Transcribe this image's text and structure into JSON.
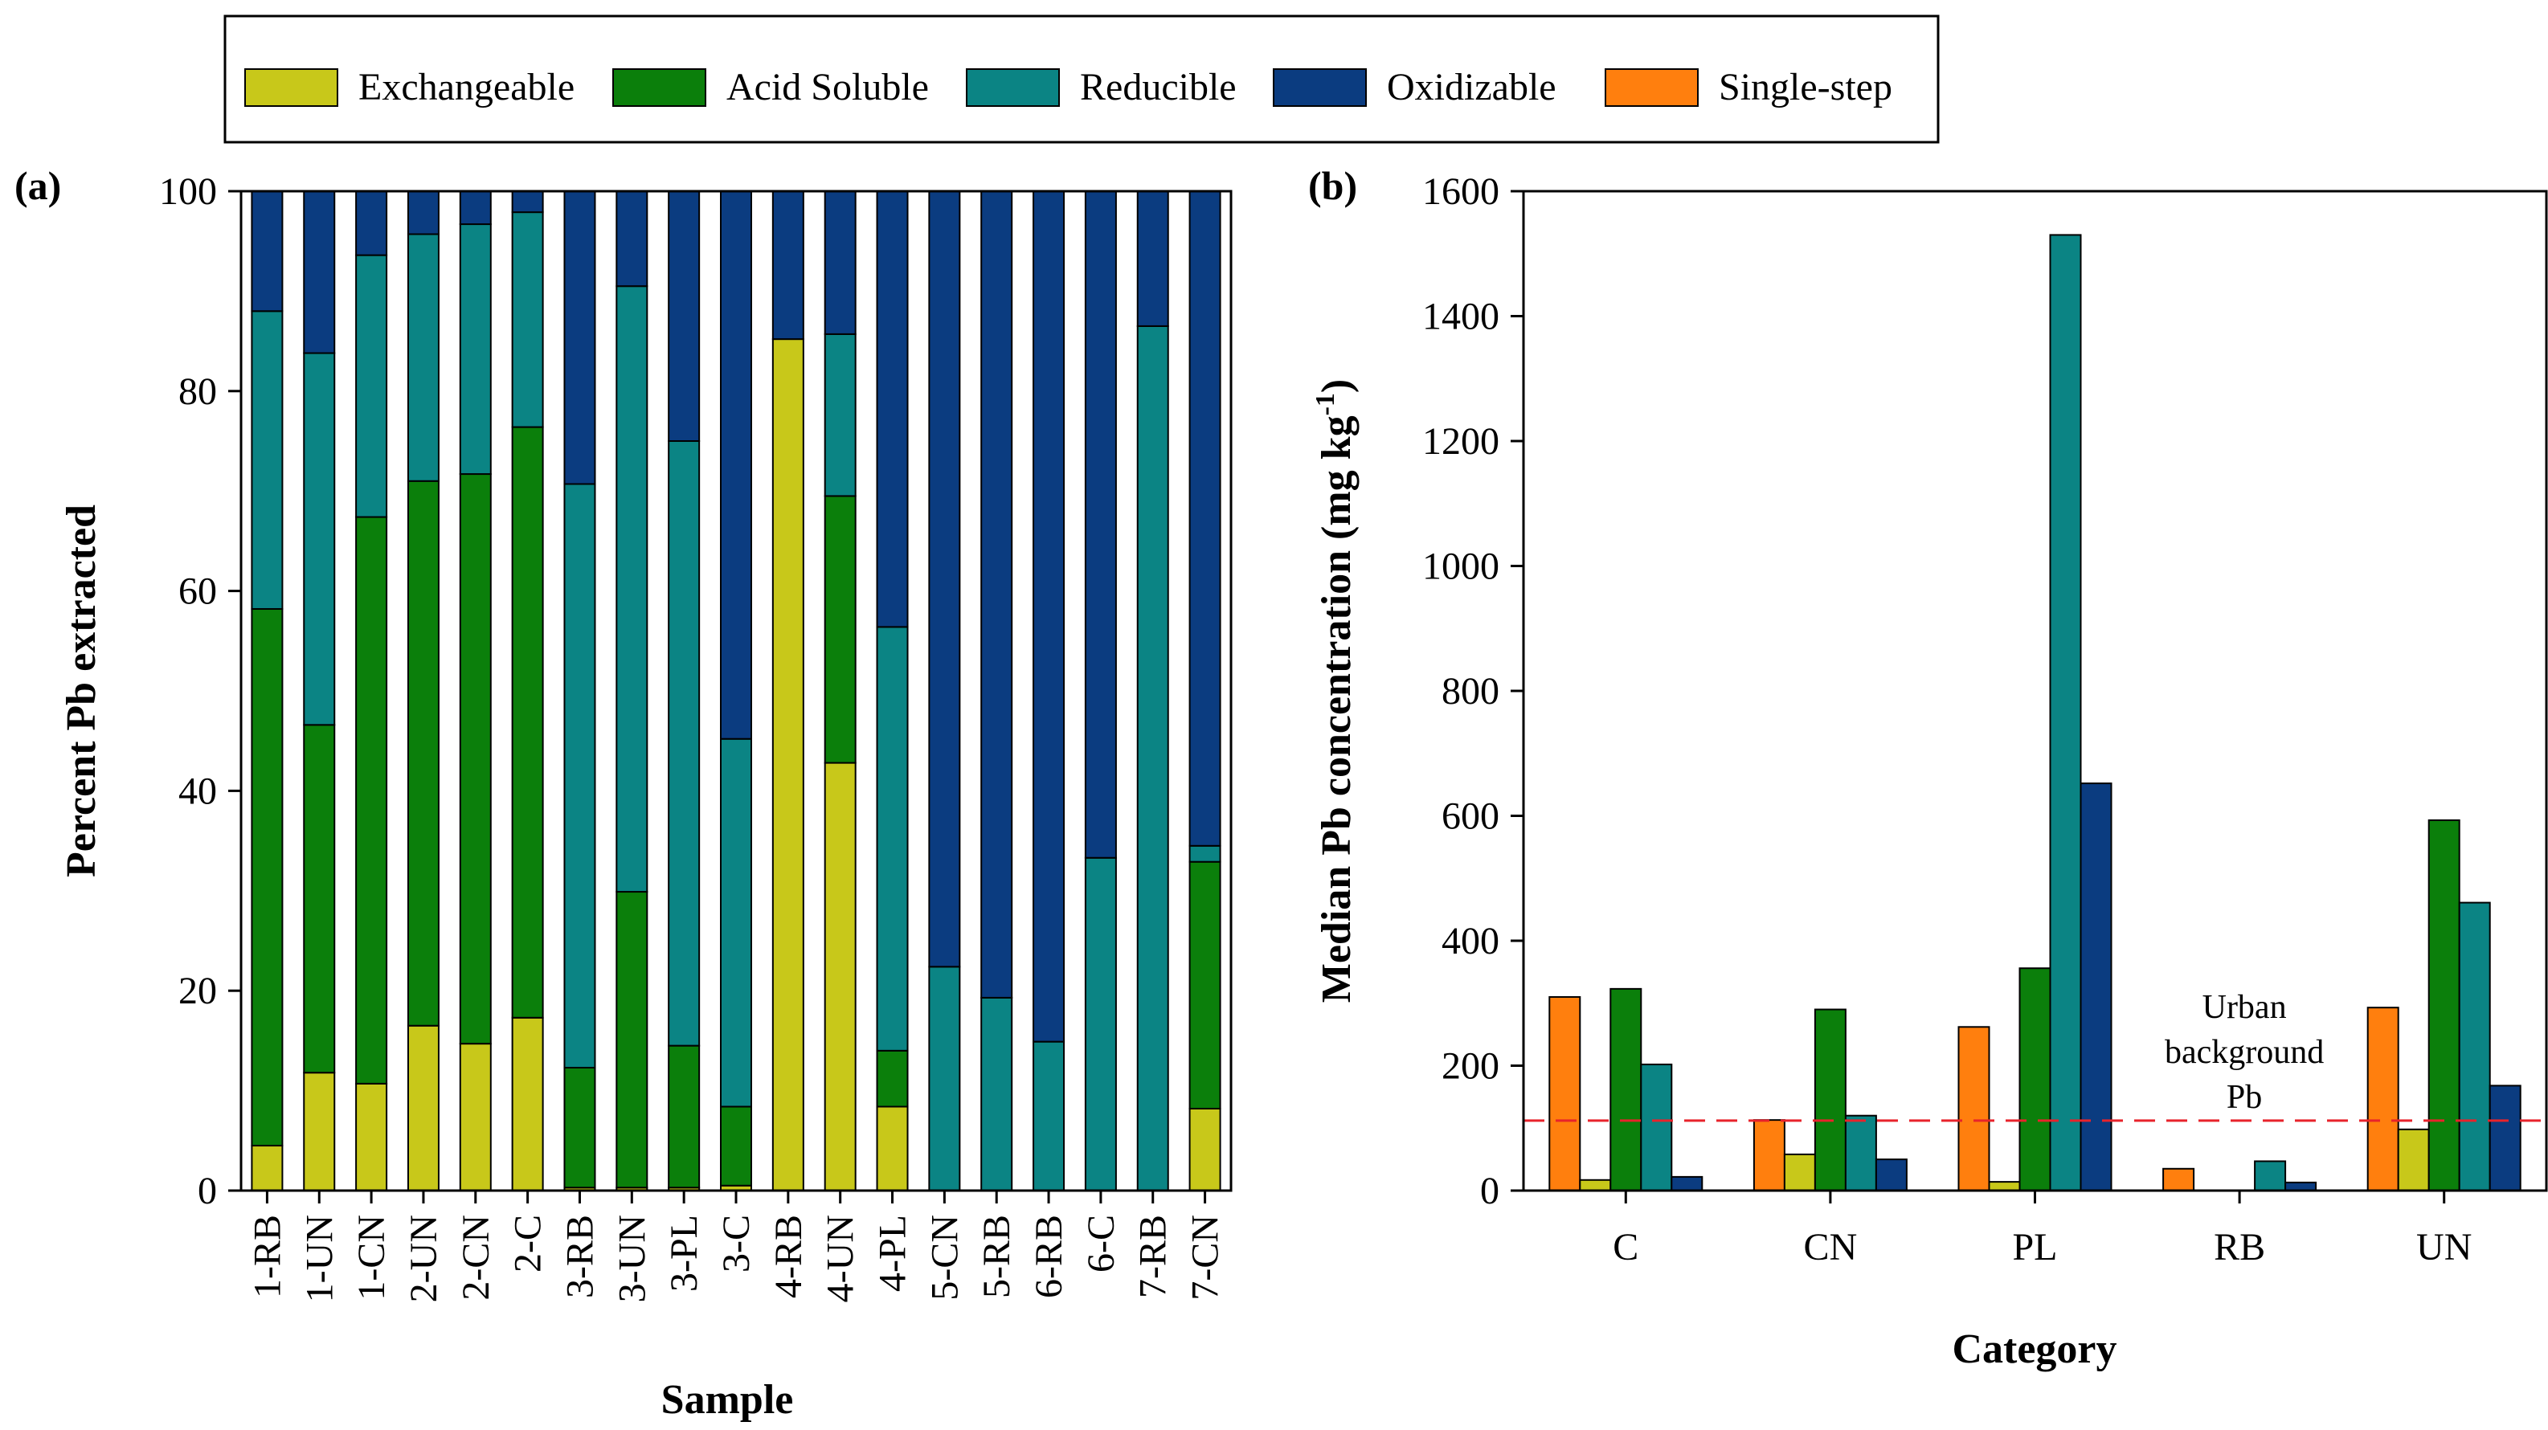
{
  "legend": {
    "items": [
      {
        "label": "Exchangeable",
        "color": "#c8c81a"
      },
      {
        "label": "Acid Soluble",
        "color": "#0b7f0b"
      },
      {
        "label": "Reducible",
        "color": "#0b8484"
      },
      {
        "label": "Oxidizable",
        "color": "#0b3c80"
      },
      {
        "label": "Single-step",
        "color": "#ff7f0e"
      }
    ]
  },
  "chart_data": [
    {
      "type": "bar",
      "stacked": true,
      "panel_label": "(a)",
      "xlabel": "Sample",
      "ylabel": "Percent Pb extracted",
      "ylim": [
        0,
        100
      ],
      "yticks": [
        "0",
        "20",
        "40",
        "60",
        "80",
        "100"
      ],
      "categories": [
        "1-RB",
        "1-UN",
        "1-CN",
        "2-UN",
        "2-CN",
        "2-C",
        "3-RB",
        "3-UN",
        "3-PL",
        "3-C",
        "4-RB",
        "4-UN",
        "4-PL",
        "5-CN",
        "5-RB",
        "6-RB",
        "6-C",
        "7-RB",
        "7-CN"
      ],
      "series": [
        {
          "name": "Exchangeable",
          "color": "#c8c81a",
          "values": [
            4.5,
            11.8,
            10.7,
            16.5,
            14.7,
            17.3,
            0.3,
            0.3,
            0.3,
            0.5,
            85.2,
            42.8,
            8.4,
            0,
            0,
            0,
            0,
            0,
            8.2
          ]
        },
        {
          "name": "Acid Soluble",
          "color": "#0b7f0b",
          "values": [
            53.7,
            34.8,
            56.7,
            54.5,
            57.0,
            59.1,
            12.0,
            29.6,
            14.2,
            7.9,
            0,
            26.7,
            5.6,
            0,
            0,
            0,
            0,
            0,
            24.7
          ]
        },
        {
          "name": "Reducible",
          "color": "#0b8484",
          "values": [
            29.8,
            37.2,
            26.2,
            24.7,
            25.0,
            21.5,
            58.4,
            60.6,
            60.5,
            36.8,
            0,
            16.2,
            42.4,
            22.4,
            19.3,
            14.9,
            33.3,
            86.5,
            1.6
          ]
        },
        {
          "name": "Oxidizable",
          "color": "#0b3c80",
          "values": [
            12.0,
            16.2,
            6.4,
            4.3,
            3.3,
            2.1,
            29.3,
            9.5,
            25.0,
            54.8,
            14.8,
            14.3,
            43.6,
            77.6,
            80.7,
            85.1,
            66.7,
            13.5,
            65.5
          ]
        }
      ]
    },
    {
      "type": "bar",
      "stacked": false,
      "panel_label": "(b)",
      "xlabel": "Category",
      "ylabel": "Median Pb concentration (mg kg",
      "ylabel_superscript": "-1",
      "ylabel_close": ")",
      "ylim": [
        0,
        1600
      ],
      "yticks": [
        "0",
        "200",
        "400",
        "600",
        "800",
        "1000",
        "1200",
        "1400",
        "1600"
      ],
      "categories": [
        "C",
        "CN",
        "PL",
        "RB",
        "UN"
      ],
      "series": [
        {
          "name": "Single-step",
          "color": "#ff7f0e",
          "values": [
            310,
            113,
            262,
            35,
            293
          ]
        },
        {
          "name": "Exchangeable",
          "color": "#c8c81a",
          "values": [
            17,
            58,
            14,
            0,
            98
          ]
        },
        {
          "name": "Acid Soluble",
          "color": "#0b7f0b",
          "values": [
            323,
            290,
            356,
            0,
            593
          ]
        },
        {
          "name": "Reducible",
          "color": "#0b8484",
          "values": [
            202,
            120,
            1530,
            47,
            461
          ]
        },
        {
          "name": "Oxidizable",
          "color": "#0b3c80",
          "values": [
            22,
            50,
            652,
            13,
            168
          ]
        }
      ],
      "reference_line": {
        "value": 112,
        "color": "#e8232b",
        "style": "dashed"
      },
      "annotation": [
        "Urban",
        "background",
        "Pb"
      ]
    }
  ]
}
